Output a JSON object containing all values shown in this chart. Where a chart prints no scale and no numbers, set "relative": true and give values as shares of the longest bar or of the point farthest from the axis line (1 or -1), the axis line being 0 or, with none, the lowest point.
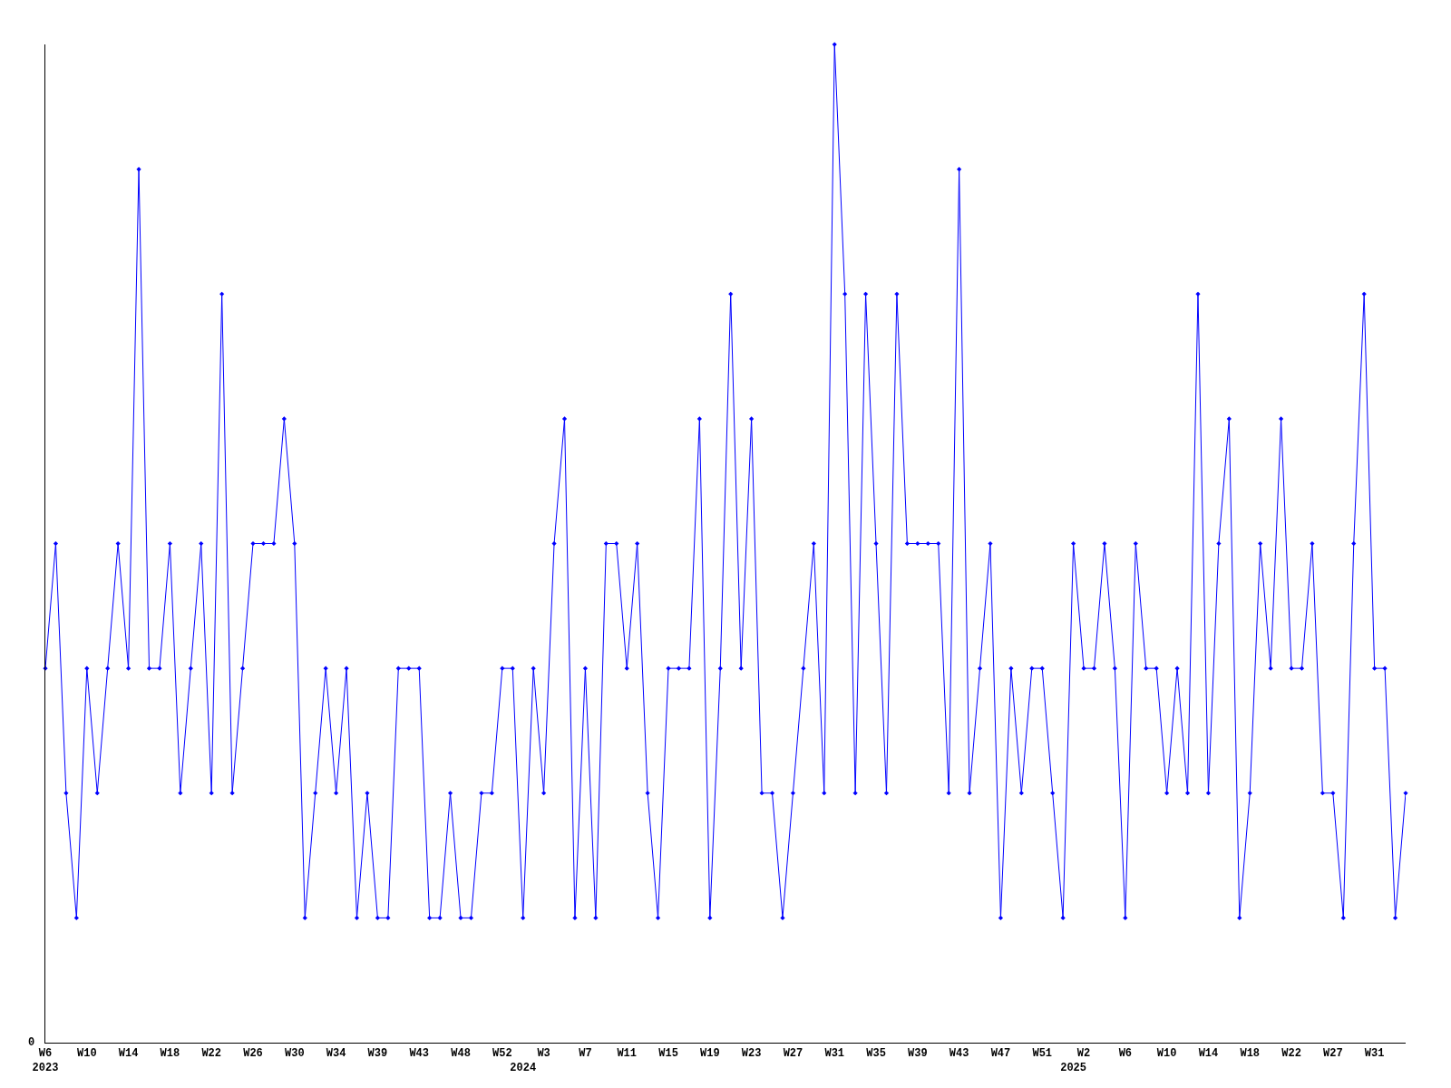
{
  "chart_data": {
    "type": "line",
    "relative": true,
    "color": "#0000ff",
    "marker": "diamond",
    "line_style": "solid",
    "grid": false,
    "annotations": [
      "0"
    ],
    "categories": [
      "W6\n2023",
      null,
      null,
      null,
      "W10",
      null,
      null,
      null,
      "W14",
      null,
      null,
      null,
      "W18",
      null,
      null,
      null,
      "W22",
      null,
      null,
      null,
      "W26",
      null,
      null,
      null,
      "W30",
      null,
      null,
      null,
      "W34",
      null,
      null,
      null,
      "W39",
      null,
      null,
      null,
      "W43",
      null,
      null,
      null,
      "W48",
      null,
      null,
      null,
      "W52",
      null,
      "\n2024",
      null,
      "W3",
      null,
      null,
      null,
      "W7",
      null,
      null,
      null,
      "W11",
      null,
      null,
      null,
      "W15",
      null,
      null,
      null,
      "W19",
      null,
      null,
      null,
      "W23",
      null,
      null,
      null,
      "W27",
      null,
      null,
      null,
      "W31",
      null,
      null,
      null,
      "W35",
      null,
      null,
      null,
      "W39",
      null,
      null,
      null,
      "W43",
      null,
      null,
      null,
      "W47",
      null,
      null,
      null,
      "W51",
      null,
      null,
      "\n2025",
      "W2",
      null,
      null,
      null,
      "W6",
      null,
      null,
      null,
      "W10",
      null,
      null,
      null,
      "W14",
      null,
      null,
      null,
      "W18",
      null,
      null,
      null,
      "W22",
      null,
      null,
      null,
      "W27",
      null,
      null,
      null,
      "W31",
      null,
      null,
      null
    ],
    "values": [
      0.375,
      0.5,
      0.25,
      0.125,
      0.375,
      0.25,
      0.375,
      0.5,
      0.375,
      0.875,
      0.375,
      0.375,
      0.5,
      0.25,
      0.375,
      0.5,
      0.25,
      0.75,
      0.25,
      0.375,
      0.5,
      0.5,
      0.5,
      0.625,
      0.5,
      0.125,
      0.25,
      0.375,
      0.25,
      0.375,
      0.125,
      0.25,
      0.125,
      0.125,
      0.375,
      0.375,
      0.375,
      0.125,
      0.125,
      0.25,
      0.125,
      0.125,
      0.25,
      0.25,
      0.375,
      0.375,
      0.125,
      0.375,
      0.25,
      0.5,
      0.625,
      0.125,
      0.375,
      0.125,
      0.5,
      0.5,
      0.375,
      0.5,
      0.25,
      0.125,
      0.375,
      0.375,
      0.375,
      0.625,
      0.125,
      0.375,
      0.75,
      0.375,
      0.625,
      0.25,
      0.25,
      0.125,
      0.25,
      0.375,
      0.5,
      0.25,
      1,
      0.75,
      0.25,
      0.75,
      0.5,
      0.25,
      0.75,
      0.5,
      0.5,
      0.5,
      0.5,
      0.25,
      0.875,
      0.25,
      0.375,
      0.5,
      0.125,
      0.375,
      0.25,
      0.375,
      0.375,
      0.25,
      0.125,
      0.5,
      0.375,
      0.375,
      0.5,
      0.375,
      0.125,
      0.5,
      0.375,
      0.375,
      0.25,
      0.375,
      0.25,
      0.75,
      0.25,
      0.5,
      0.625,
      0.125,
      0.25,
      0.5,
      0.375,
      0.625,
      0.375,
      0.375,
      0.5,
      0.25,
      0.25,
      0.125,
      0.5,
      0.75,
      0.375,
      0.375,
      0.125,
      0.25
    ]
  }
}
